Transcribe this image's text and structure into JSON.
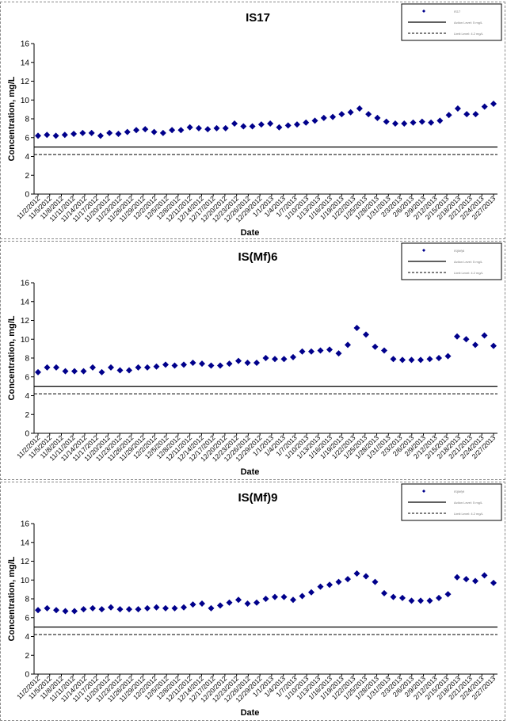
{
  "chart_data": [
    {
      "type": "scatter",
      "title": "IS17",
      "xlabel": "Date",
      "ylabel": "Concentration, mg/L",
      "ylim": [
        0,
        16
      ],
      "yticks": [
        0,
        2,
        4,
        6,
        8,
        10,
        12,
        14,
        16
      ],
      "grid": false,
      "legend_position": "top-right",
      "x_tick_labels": [
        "11/2/2012",
        "11/5/2012",
        "11/8/2012",
        "11/11/2012",
        "11/14/2012",
        "11/17/2012",
        "11/20/2012",
        "11/23/2012",
        "11/26/2012",
        "11/29/2012",
        "12/2/2012",
        "12/5/2012",
        "12/8/2012",
        "12/11/2012",
        "12/14/2012",
        "12/17/2012",
        "12/20/2012",
        "12/23/2012",
        "12/26/2012",
        "12/29/2012",
        "1/1/2013",
        "1/4/2013",
        "1/7/2013",
        "1/10/2013",
        "1/13/2013",
        "1/16/2013",
        "1/19/2013",
        "1/22/2013",
        "1/25/2013",
        "1/28/2013",
        "1/31/2013",
        "2/3/2013",
        "2/6/2013",
        "2/9/2013",
        "2/12/2013",
        "2/15/2013",
        "2/18/2013",
        "2/21/2013",
        "2/24/2013",
        "2/27/2013"
      ],
      "series": [
        {
          "name": "IS17",
          "values": [
            6.2,
            6.3,
            6.2,
            6.3,
            6.4,
            6.5,
            6.5,
            6.2,
            6.5,
            6.4,
            6.6,
            6.8,
            6.9,
            6.6,
            6.5,
            6.8,
            6.8,
            7.1,
            7.0,
            6.9,
            7.0,
            7.0,
            7.5,
            7.2,
            7.2,
            7.4,
            7.5,
            7.1,
            7.3,
            7.4,
            7.6,
            7.8,
            8.1,
            8.2,
            8.5,
            8.7,
            9.1,
            8.5,
            8.1,
            7.7,
            7.5,
            7.5,
            7.6,
            7.7,
            7.6,
            7.8,
            8.4,
            9.1,
            8.5,
            8.5,
            9.3,
            9.6
          ]
        }
      ],
      "reference_lines": [
        {
          "name": "Action Level: 5 mg/L",
          "value": 5,
          "style": "solid"
        },
        {
          "name": "Limit Level: 4.2 mg/L",
          "value": 4.2,
          "style": "dashed"
        }
      ]
    },
    {
      "type": "scatter",
      "title": "IS(Mf)6",
      "xlabel": "Date",
      "ylabel": "Concentration, mg/L",
      "ylim": [
        0,
        16
      ],
      "yticks": [
        0,
        2,
        4,
        6,
        8,
        10,
        12,
        14,
        16
      ],
      "grid": false,
      "legend_position": "top-right",
      "x_tick_labels": [
        "11/2/2012",
        "11/5/2012",
        "11/8/2012",
        "11/11/2012",
        "11/14/2012",
        "11/17/2012",
        "11/20/2012",
        "11/23/2012",
        "11/26/2012",
        "11/29/2012",
        "12/2/2012",
        "12/5/2012",
        "12/8/2012",
        "12/11/2012",
        "12/14/2012",
        "12/17/2012",
        "12/20/2012",
        "12/23/2012",
        "12/26/2012",
        "12/29/2012",
        "1/1/2013",
        "1/4/2013",
        "1/7/2013",
        "1/10/2013",
        "1/13/2013",
        "1/16/2013",
        "1/19/2013",
        "1/22/2013",
        "1/25/2013",
        "1/28/2013",
        "1/31/2013",
        "2/3/2013",
        "2/6/2013",
        "2/9/2013",
        "2/12/2013",
        "2/15/2013",
        "2/18/2013",
        "2/21/2013",
        "2/24/2013",
        "2/27/2013"
      ],
      "series": [
        {
          "name": "IS(Mf)6",
          "values": [
            6.5,
            7.0,
            7.0,
            6.6,
            6.6,
            6.6,
            7.0,
            6.5,
            7.0,
            6.7,
            6.7,
            7.0,
            7.0,
            7.1,
            7.3,
            7.2,
            7.3,
            7.5,
            7.4,
            7.2,
            7.2,
            7.4,
            7.7,
            7.5,
            7.5,
            8.0,
            7.9,
            7.9,
            8.1,
            8.7,
            8.7,
            8.8,
            8.9,
            8.5,
            9.4,
            11.2,
            10.5,
            9.2,
            8.8,
            7.9,
            7.8,
            7.8,
            7.8,
            7.9,
            8.0,
            8.2,
            10.3,
            10.0,
            9.4,
            10.4,
            9.3
          ]
        }
      ],
      "reference_lines": [
        {
          "name": "Action Level: 5 mg/L",
          "value": 5,
          "style": "solid"
        },
        {
          "name": "Limit Level: 4.2 mg/L",
          "value": 4.2,
          "style": "dashed"
        }
      ]
    },
    {
      "type": "scatter",
      "title": "IS(Mf)9",
      "xlabel": "Date",
      "ylabel": "Concentration, mg/L",
      "ylim": [
        0,
        16
      ],
      "yticks": [
        0,
        2,
        4,
        6,
        8,
        10,
        12,
        14,
        16
      ],
      "grid": false,
      "legend_position": "top-right",
      "x_tick_labels": [
        "11/2/2012",
        "11/5/2012",
        "11/8/2012",
        "11/11/2012",
        "11/14/2012",
        "11/17/2012",
        "11/20/2012",
        "11/23/2012",
        "11/26/2012",
        "11/29/2012",
        "12/2/2012",
        "12/5/2012",
        "12/8/2012",
        "12/11/2012",
        "12/14/2012",
        "12/17/2012",
        "12/20/2012",
        "12/23/2012",
        "12/26/2012",
        "12/29/2012",
        "1/1/2013",
        "1/4/2013",
        "1/7/2013",
        "1/10/2013",
        "1/13/2013",
        "1/16/2013",
        "1/19/2013",
        "1/22/2013",
        "1/25/2013",
        "1/28/2013",
        "1/31/2013",
        "2/3/2013",
        "2/6/2013",
        "2/9/2013",
        "2/12/2013",
        "2/15/2013",
        "2/18/2013",
        "2/21/2013",
        "2/24/2013",
        "2/27/2013"
      ],
      "series": [
        {
          "name": "IS(Mf)9",
          "values": [
            6.8,
            7.0,
            6.8,
            6.7,
            6.7,
            6.9,
            7.0,
            6.9,
            7.1,
            6.9,
            6.9,
            6.9,
            7.0,
            7.1,
            7.0,
            7.0,
            7.1,
            7.4,
            7.5,
            7.0,
            7.3,
            7.6,
            7.9,
            7.5,
            7.6,
            8.0,
            8.2,
            8.2,
            7.9,
            8.3,
            8.7,
            9.3,
            9.5,
            9.8,
            10.1,
            10.7,
            10.4,
            9.8,
            8.6,
            8.2,
            8.1,
            7.8,
            7.8,
            7.8,
            8.1,
            8.5,
            10.3,
            10.1,
            9.9,
            10.5,
            9.7
          ]
        }
      ],
      "reference_lines": [
        {
          "name": "Action Level: 5 mg/L",
          "value": 5,
          "style": "solid"
        },
        {
          "name": "Limit Level: 4.2 mg/L",
          "value": 4.2,
          "style": "dashed"
        }
      ]
    }
  ]
}
